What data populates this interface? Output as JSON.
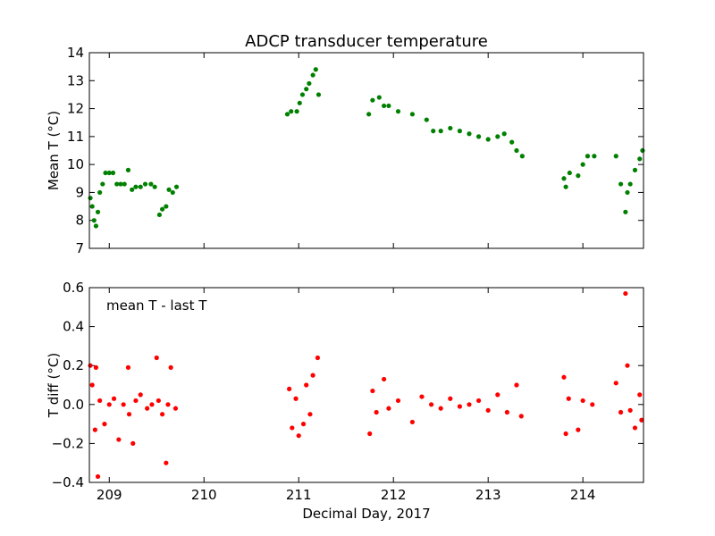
{
  "chart_data": [
    {
      "type": "scatter",
      "title": "ADCP transducer temperature",
      "ylabel": "Mean T (°C)",
      "color": "#008000",
      "xlim": [
        208.79,
        214.64
      ],
      "xticks": [
        209,
        210,
        211,
        212,
        213,
        214
      ],
      "show_xtick_labels": false,
      "ylim": [
        7,
        14
      ],
      "yticks": [
        7,
        8,
        9,
        10,
        11,
        12,
        13,
        14
      ],
      "x": [
        208.8,
        208.82,
        208.84,
        208.86,
        208.88,
        208.9,
        208.93,
        208.96,
        209.0,
        209.04,
        209.08,
        209.12,
        209.16,
        209.2,
        209.24,
        209.28,
        209.33,
        209.38,
        209.44,
        209.48,
        209.53,
        209.56,
        209.6,
        209.63,
        209.67,
        209.71,
        210.88,
        210.92,
        210.98,
        211.01,
        211.04,
        211.08,
        211.11,
        211.15,
        211.18,
        211.21,
        211.74,
        211.78,
        211.85,
        211.9,
        211.95,
        212.05,
        212.2,
        212.35,
        212.42,
        212.5,
        212.6,
        212.7,
        212.8,
        212.9,
        213.0,
        213.1,
        213.17,
        213.25,
        213.3,
        213.36,
        213.8,
        213.82,
        213.86,
        213.95,
        214.0,
        214.05,
        214.12,
        214.35,
        214.4,
        214.45,
        214.47,
        214.5,
        214.55,
        214.6,
        214.63
      ],
      "values": [
        8.8,
        8.5,
        8.0,
        7.8,
        8.3,
        9.0,
        9.3,
        9.7,
        9.7,
        9.7,
        9.3,
        9.3,
        9.3,
        9.8,
        9.1,
        9.2,
        9.2,
        9.3,
        9.3,
        9.2,
        8.2,
        8.4,
        8.5,
        9.1,
        9.0,
        9.2,
        11.8,
        11.9,
        11.9,
        12.2,
        12.5,
        12.7,
        12.9,
        13.2,
        13.4,
        12.5,
        11.8,
        12.3,
        12.4,
        12.1,
        12.1,
        11.9,
        11.8,
        11.6,
        11.2,
        11.2,
        11.3,
        11.2,
        11.1,
        11.0,
        10.9,
        11.0,
        11.1,
        10.8,
        10.5,
        10.3,
        9.5,
        9.2,
        9.7,
        9.6,
        10.0,
        10.3,
        10.3,
        10.3,
        9.3,
        8.3,
        9.0,
        9.3,
        9.8,
        10.2,
        10.5
      ]
    },
    {
      "type": "scatter",
      "xlabel": "Decimal Day, 2017",
      "ylabel": "T diff (°C)",
      "annotation": "mean T - last T",
      "color": "#ff0000",
      "xlim": [
        208.79,
        214.64
      ],
      "xticks": [
        209,
        210,
        211,
        212,
        213,
        214
      ],
      "show_xtick_labels": true,
      "ylim": [
        -0.4,
        0.6
      ],
      "yticks": [
        {
          "value": -0.4,
          "label": "−0.4"
        },
        {
          "value": -0.2,
          "label": "−0.2"
        },
        {
          "value": 0,
          "label": "0.0"
        },
        0.2,
        0.4,
        0.6
      ],
      "x": [
        208.8,
        208.82,
        208.85,
        208.86,
        208.88,
        208.9,
        208.95,
        209.0,
        209.05,
        209.1,
        209.15,
        209.2,
        209.21,
        209.25,
        209.28,
        209.33,
        209.4,
        209.45,
        209.5,
        209.52,
        209.56,
        209.6,
        209.62,
        209.65,
        209.7,
        210.9,
        210.93,
        210.97,
        211.0,
        211.05,
        211.08,
        211.12,
        211.15,
        211.2,
        211.75,
        211.78,
        211.82,
        211.9,
        211.95,
        212.05,
        212.2,
        212.3,
        212.4,
        212.5,
        212.6,
        212.7,
        212.8,
        212.9,
        213.0,
        213.1,
        213.2,
        213.3,
        213.35,
        213.8,
        213.82,
        213.85,
        213.95,
        214.0,
        214.1,
        214.35,
        214.4,
        214.45,
        214.47,
        214.5,
        214.55,
        214.6,
        214.62
      ],
      "values": [
        0.2,
        0.1,
        -0.13,
        0.19,
        -0.37,
        0.02,
        -0.1,
        0.0,
        0.03,
        -0.18,
        0.0,
        0.19,
        -0.05,
        -0.2,
        0.02,
        0.05,
        -0.02,
        0.0,
        0.24,
        0.02,
        -0.05,
        -0.3,
        0.0,
        0.19,
        -0.02,
        0.08,
        -0.12,
        0.03,
        -0.16,
        -0.1,
        0.1,
        -0.05,
        0.15,
        0.24,
        -0.15,
        0.07,
        -0.04,
        0.13,
        -0.02,
        0.02,
        -0.09,
        0.04,
        0.0,
        -0.02,
        0.03,
        -0.01,
        0.0,
        0.02,
        -0.03,
        0.05,
        -0.04,
        0.1,
        -0.06,
        0.14,
        -0.15,
        0.03,
        -0.13,
        0.02,
        0.0,
        0.11,
        -0.04,
        0.57,
        0.2,
        -0.03,
        -0.12,
        0.05,
        -0.08
      ]
    }
  ]
}
